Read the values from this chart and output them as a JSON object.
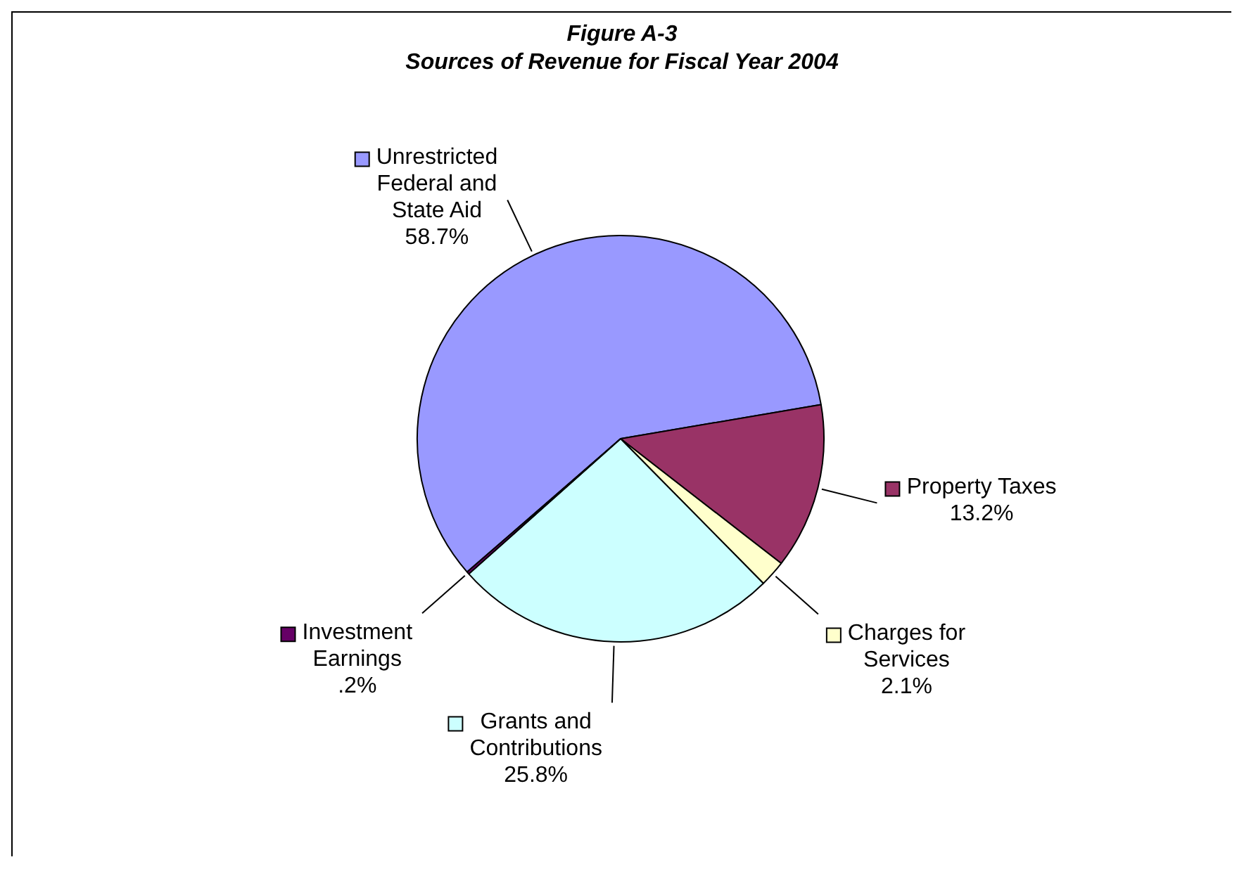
{
  "chart_data": {
    "type": "pie",
    "title": "Figure A-3",
    "subtitle": "Sources of Revenue for Fiscal Year 2004",
    "categories": [
      "Unrestricted Federal and State Aid",
      "Property Taxes",
      "Charges for Services",
      "Grants and Contributions",
      "Investment Earnings"
    ],
    "values": [
      58.7,
      13.2,
      2.1,
      25.8,
      0.2
    ],
    "colors": [
      "#9999ff",
      "#993366",
      "#ffffcc",
      "#ccffff",
      "#660066"
    ],
    "value_labels": [
      "58.7%",
      "13.2%",
      "2.1%",
      "25.8%",
      ".2%"
    ],
    "legend": true
  }
}
